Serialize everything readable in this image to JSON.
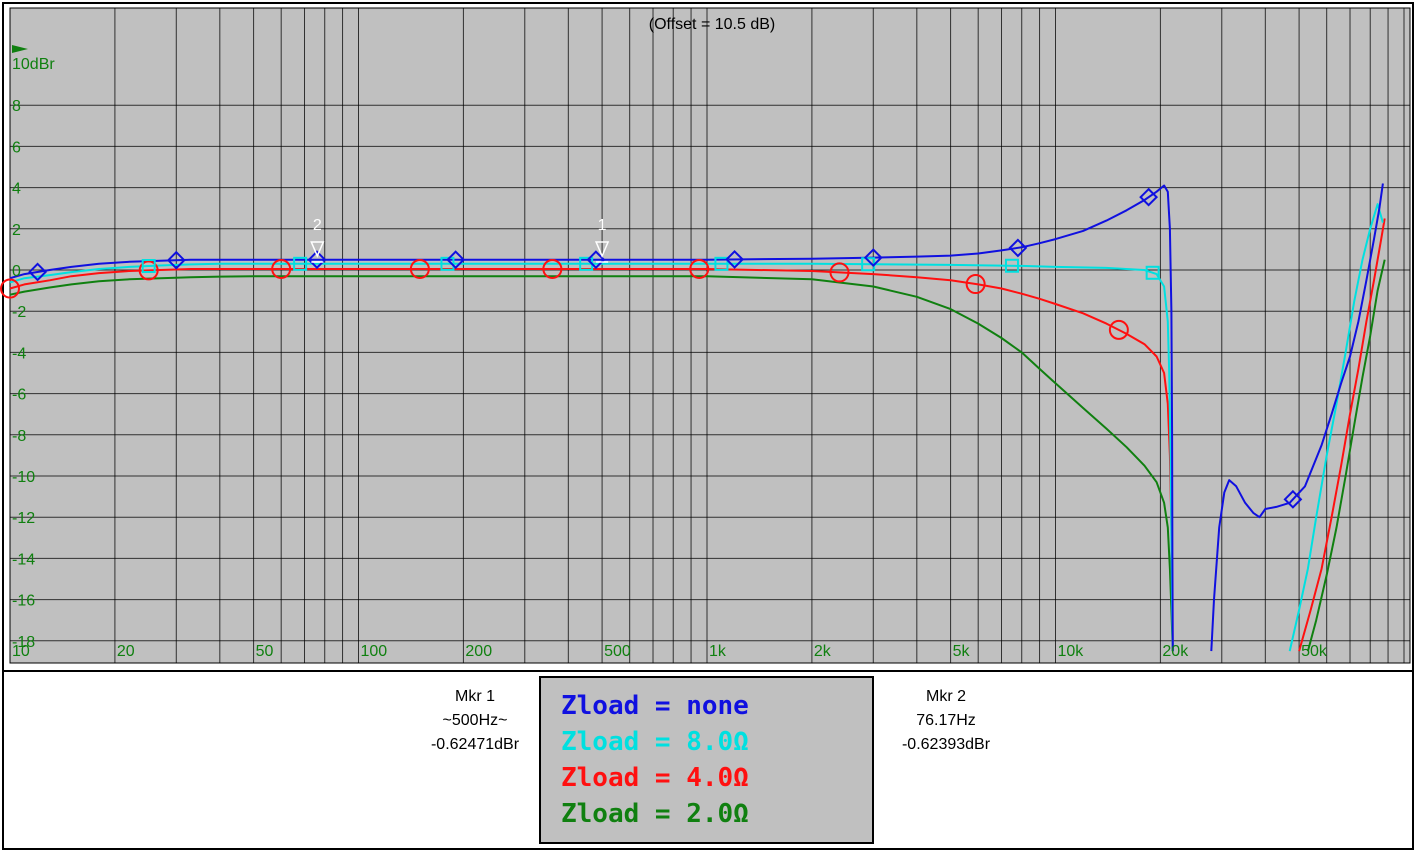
{
  "offset_label": "(Offset = 10.5 dB)",
  "y_unit_label": "10dBr",
  "marker1": {
    "title": "Mkr 1",
    "freq": "~500Hz~",
    "level": "-0.62471dBr"
  },
  "marker2": {
    "title": "Mkr 2",
    "freq": "76.17Hz",
    "level": "-0.62393dBr"
  },
  "legend": {
    "entries": [
      {
        "label": "Zload = none",
        "color": "#1010e0"
      },
      {
        "label": "Zload = 8.0Ω",
        "color": "#00e0e0"
      },
      {
        "label": "Zload = 4.0Ω",
        "color": "#ff1010"
      },
      {
        "label": "Zload = 2.0Ω",
        "color": "#108010"
      }
    ]
  },
  "chart_data": {
    "type": "line",
    "title": "(Offset = 10.5 dB)",
    "xlabel": "",
    "ylabel": "10dBr",
    "x_scale": "log",
    "xlim": [
      10,
      90000
    ],
    "ylim": [
      -18,
      10
    ],
    "grid": true,
    "x_tick_labels": [
      {
        "value": 10,
        "label": "10"
      },
      {
        "value": 20,
        "label": "20"
      },
      {
        "value": 50,
        "label": "50"
      },
      {
        "value": 100,
        "label": "100"
      },
      {
        "value": 200,
        "label": "200"
      },
      {
        "value": 500,
        "label": "500"
      },
      {
        "value": 1000,
        "label": "1k"
      },
      {
        "value": 2000,
        "label": "2k"
      },
      {
        "value": 5000,
        "label": "5k"
      },
      {
        "value": 10000,
        "label": "10k"
      },
      {
        "value": 20000,
        "label": "20k"
      },
      {
        "value": 50000,
        "label": "50k"
      }
    ],
    "y_tick_labels": [
      {
        "value": 8,
        "label": "8"
      },
      {
        "value": 6,
        "label": "6"
      },
      {
        "value": 4,
        "label": "4"
      },
      {
        "value": 2,
        "label": "2"
      },
      {
        "value": 0,
        "label": "0"
      },
      {
        "value": -2,
        "label": "-2"
      },
      {
        "value": -4,
        "label": "-4"
      },
      {
        "value": -6,
        "label": "-6"
      },
      {
        "value": -8,
        "label": "-8"
      },
      {
        "value": -10,
        "label": "-10"
      },
      {
        "value": -12,
        "label": "-12"
      },
      {
        "value": -14,
        "label": "-14"
      },
      {
        "value": -16,
        "label": "-16"
      },
      {
        "value": -18,
        "label": "-18"
      }
    ],
    "axis_color": "#108010",
    "background": "#c0c0c0",
    "markers": [
      {
        "label": "1",
        "x": 500,
        "y": -0.62
      },
      {
        "label": "2",
        "x": 76.17,
        "y": -0.62
      }
    ],
    "series": [
      {
        "name": "Zload = none",
        "color": "#1010e0",
        "symbol": "diamond",
        "x": [
          10,
          11,
          13,
          15,
          18,
          22,
          27,
          33,
          40,
          50,
          70,
          100,
          200,
          500,
          1000,
          2000,
          3000,
          4000,
          5000,
          6000,
          7000,
          8000,
          9000,
          10000,
          12000,
          14000,
          16000,
          18000,
          19500,
          20500,
          21000,
          21300,
          21500,
          21600,
          21650,
          21700
        ],
        "y": [
          -0.4,
          -0.2,
          0.0,
          0.15,
          0.3,
          0.4,
          0.45,
          0.5,
          0.5,
          0.5,
          0.5,
          0.5,
          0.5,
          0.5,
          0.5,
          0.55,
          0.6,
          0.65,
          0.7,
          0.8,
          0.95,
          1.1,
          1.3,
          1.5,
          1.9,
          2.4,
          2.9,
          3.4,
          3.8,
          4.1,
          3.8,
          2.0,
          -2.0,
          -8.0,
          -14.0,
          -18.5
        ],
        "marker_x": [
          12,
          30,
          76,
          190,
          480,
          1200,
          3000,
          7800,
          18500
        ],
        "x2": [
          28000,
          28500,
          29500,
          30500,
          31500,
          33000,
          35000,
          37000,
          38500,
          40000,
          43000,
          47000,
          52000,
          58000,
          62000,
          66000,
          70000,
          74000,
          78000,
          82000,
          85000,
          87000
        ],
        "y2": [
          -18.5,
          -16.0,
          -12.5,
          -10.8,
          -10.2,
          -10.5,
          -11.3,
          -11.8,
          -12.0,
          -11.6,
          -11.5,
          -11.3,
          -10.5,
          -8.5,
          -7.0,
          -5.5,
          -4.2,
          -2.5,
          -0.5,
          1.5,
          3.0,
          4.2
        ],
        "marker_x2": [
          48000
        ]
      },
      {
        "name": "Zload = 8.0Ω",
        "color": "#00e0e0",
        "symbol": "square",
        "x": [
          10,
          11,
          13,
          15,
          18,
          22,
          27,
          33,
          40,
          50,
          70,
          100,
          200,
          500,
          1000,
          2000,
          5000,
          8000,
          10000,
          14000,
          18000,
          19500,
          20500,
          21000,
          21200,
          21400,
          21500,
          21600,
          21700
        ],
        "y": [
          -0.6,
          -0.4,
          -0.25,
          -0.1,
          0.05,
          0.15,
          0.22,
          0.27,
          0.3,
          0.3,
          0.3,
          0.3,
          0.3,
          0.3,
          0.3,
          0.3,
          0.25,
          0.2,
          0.15,
          0.1,
          0.0,
          -0.2,
          -0.8,
          -2.5,
          -5.0,
          -9.0,
          -13.0,
          -16.5,
          -18.5
        ],
        "marker_x": [
          25,
          68,
          180,
          450,
          1100,
          2900,
          7500,
          19000
        ],
        "x2": [
          47000,
          50000,
          53000,
          56000,
          60000,
          64000,
          68000,
          72000,
          76000,
          80000,
          84000,
          87000
        ],
        "y2": [
          -18.5,
          -16.5,
          -14.5,
          -12.0,
          -9.0,
          -6.5,
          -4.0,
          -1.5,
          0.5,
          2.0,
          3.2,
          2.3
        ]
      },
      {
        "name": "Zload = 4.0Ω",
        "color": "#ff1010",
        "symbol": "circle",
        "x": [
          10,
          11,
          13,
          15,
          18,
          22,
          27,
          33,
          40,
          50,
          70,
          100,
          200,
          500,
          1000,
          2000,
          3000,
          4000,
          5000,
          6000,
          7000,
          8000,
          9000,
          10000,
          12000,
          14000,
          16000,
          18000,
          19500,
          20500,
          21000,
          21300,
          21500,
          21600,
          21700
        ],
        "y": [
          -0.9,
          -0.7,
          -0.5,
          -0.3,
          -0.15,
          -0.05,
          0.0,
          0.05,
          0.05,
          0.05,
          0.05,
          0.05,
          0.05,
          0.05,
          0.05,
          -0.05,
          -0.2,
          -0.35,
          -0.5,
          -0.7,
          -0.9,
          -1.15,
          -1.4,
          -1.65,
          -2.1,
          -2.6,
          -3.1,
          -3.6,
          -4.2,
          -5.0,
          -6.5,
          -9.0,
          -12.5,
          -16.0,
          -18.5
        ],
        "marker_x": [
          10,
          25,
          60,
          150,
          360,
          950,
          2400,
          5900,
          15200
        ],
        "x2": [
          50000,
          54000,
          58000,
          62000,
          66000,
          70000,
          74000,
          78000,
          82000,
          86000,
          88000
        ],
        "y2": [
          -18.5,
          -16.5,
          -14.5,
          -12.0,
          -9.5,
          -7.0,
          -4.8,
          -2.5,
          -0.5,
          1.5,
          2.5
        ]
      },
      {
        "name": "Zload = 2.0Ω",
        "color": "#108010",
        "symbol": "none",
        "x": [
          10,
          11,
          13,
          15,
          18,
          22,
          27,
          33,
          40,
          50,
          70,
          100,
          200,
          500,
          1000,
          2000,
          3000,
          4000,
          5000,
          6000,
          7000,
          8000,
          9000,
          10000,
          12000,
          14000,
          16000,
          18000,
          19500,
          20500,
          21000,
          21300,
          21500,
          21700
        ],
        "y": [
          -1.2,
          -1.05,
          -0.85,
          -0.7,
          -0.55,
          -0.45,
          -0.4,
          -0.35,
          -0.32,
          -0.3,
          -0.3,
          -0.3,
          -0.3,
          -0.3,
          -0.3,
          -0.45,
          -0.8,
          -1.3,
          -1.9,
          -2.6,
          -3.3,
          -4.0,
          -4.8,
          -5.5,
          -6.7,
          -7.7,
          -8.6,
          -9.5,
          -10.3,
          -11.3,
          -12.5,
          -14.5,
          -16.5,
          -18.5
        ],
        "x2": [
          53000,
          56000,
          60000,
          64000,
          68000,
          72000,
          76000,
          80000,
          84000,
          88000
        ],
        "y2": [
          -18.5,
          -17.0,
          -14.8,
          -12.5,
          -10.0,
          -7.5,
          -5.2,
          -3.2,
          -1.0,
          0.5
        ]
      }
    ]
  }
}
